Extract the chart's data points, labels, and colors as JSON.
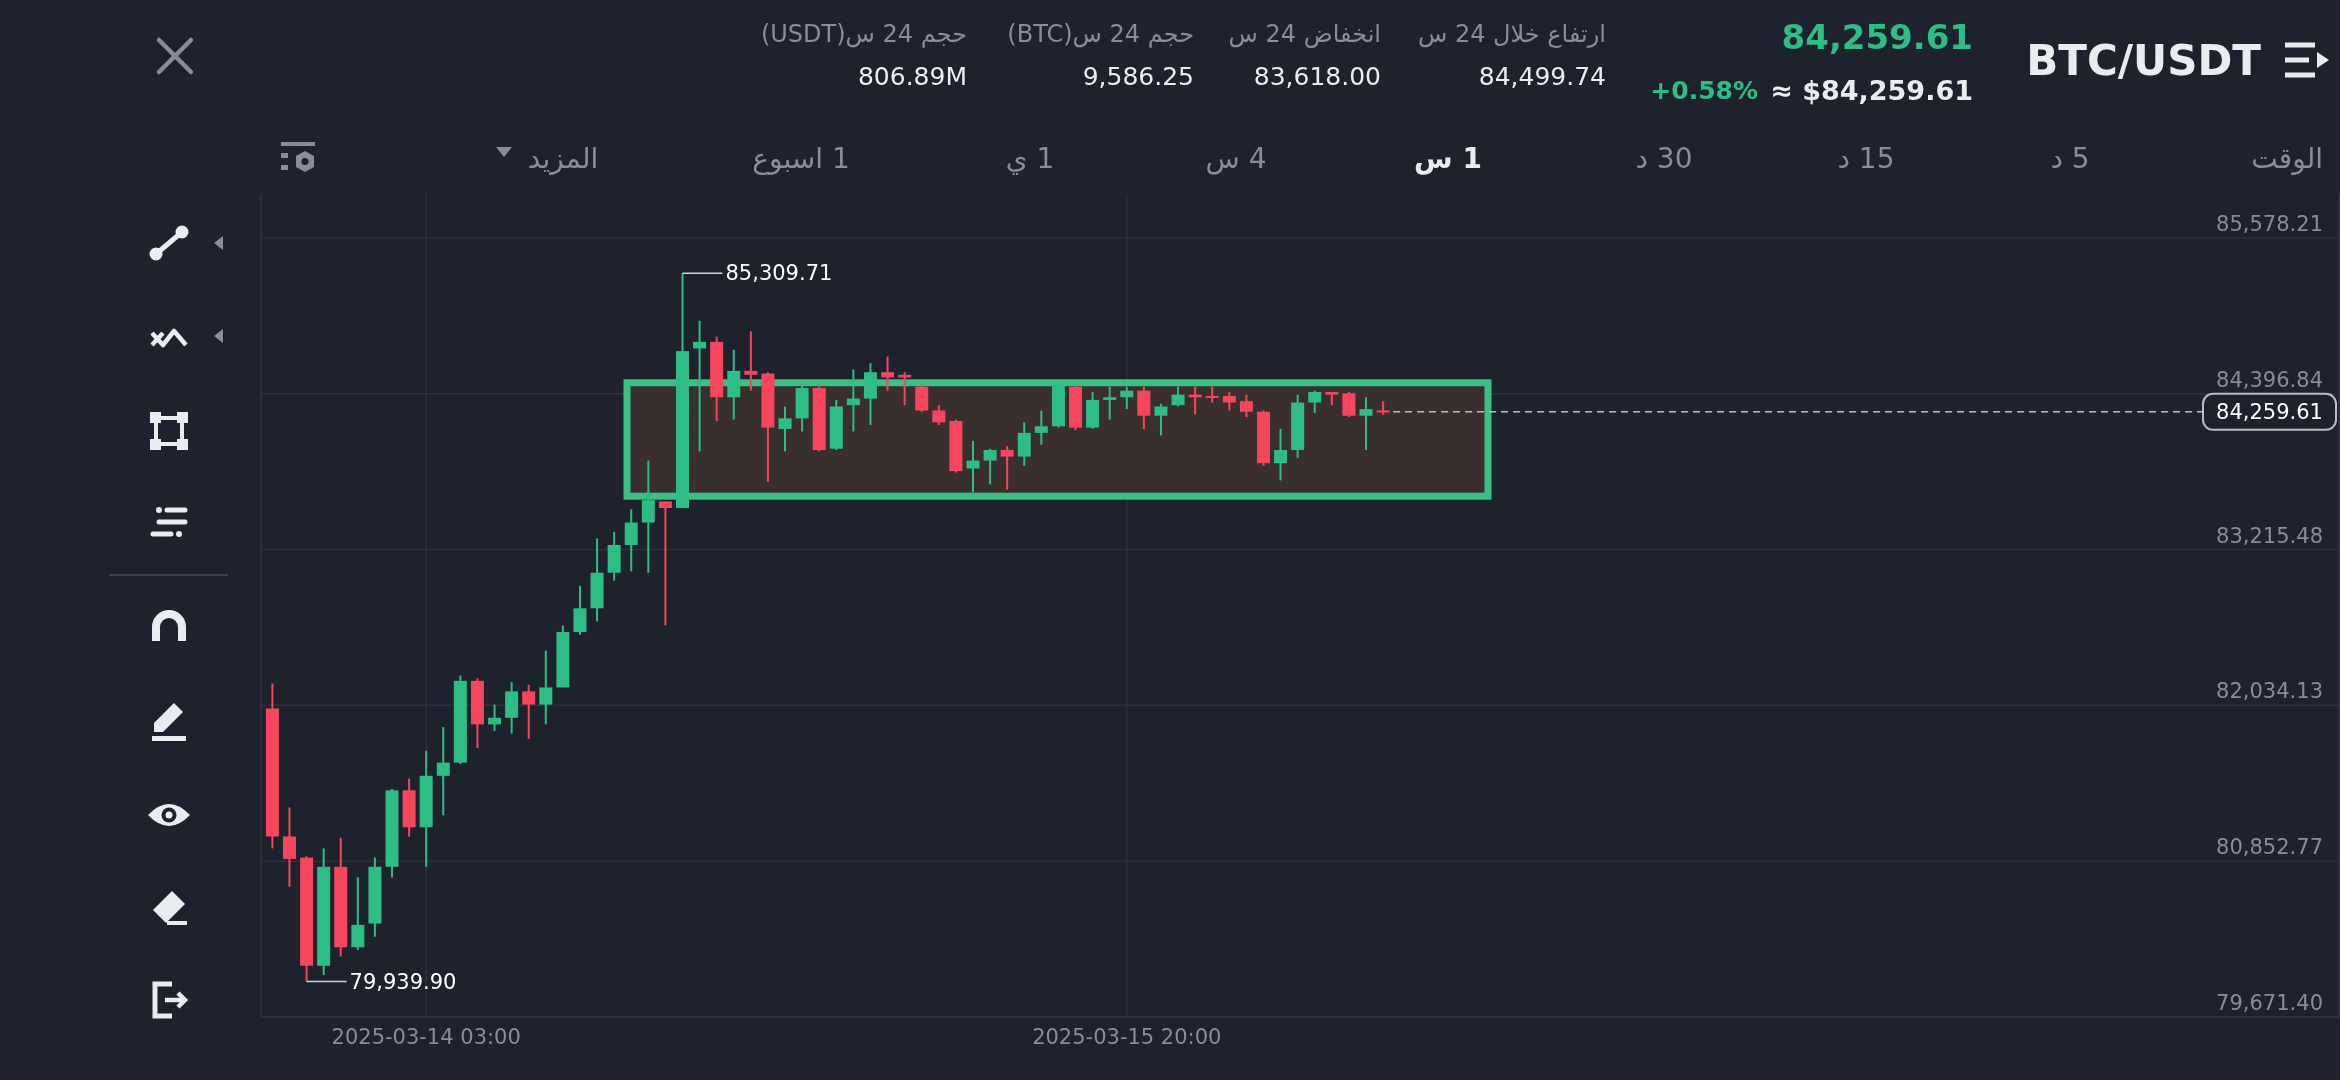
{
  "chart_data": {
    "type": "candlestick",
    "title": "BTC/USDT",
    "x": [
      "2025-03-13T18:00",
      "2025-03-13T19:00",
      "2025-03-13T20:00",
      "2025-03-13T21:00",
      "2025-03-13T22:00",
      "2025-03-13T23:00",
      "2025-03-14T00:00",
      "2025-03-14T01:00",
      "2025-03-14T02:00",
      "2025-03-14T03:00",
      "2025-03-14T04:00",
      "2025-03-14T05:00",
      "2025-03-14T06:00",
      "2025-03-14T07:00",
      "2025-03-14T08:00",
      "2025-03-14T09:00",
      "2025-03-14T10:00",
      "2025-03-14T11:00",
      "2025-03-14T12:00",
      "2025-03-14T13:00",
      "2025-03-14T14:00",
      "2025-03-14T15:00",
      "2025-03-14T16:00",
      "2025-03-14T17:00",
      "2025-03-14T18:00",
      "2025-03-14T19:00",
      "2025-03-14T20:00",
      "2025-03-14T21:00",
      "2025-03-14T22:00",
      "2025-03-14T23:00",
      "2025-03-15T00:00",
      "2025-03-15T01:00",
      "2025-03-15T02:00",
      "2025-03-15T03:00",
      "2025-03-15T04:00",
      "2025-03-15T05:00",
      "2025-03-15T06:00",
      "2025-03-15T07:00",
      "2025-03-15T08:00",
      "2025-03-15T09:00",
      "2025-03-15T10:00",
      "2025-03-15T11:00",
      "2025-03-15T12:00",
      "2025-03-15T13:00",
      "2025-03-15T14:00",
      "2025-03-15T15:00",
      "2025-03-15T16:00",
      "2025-03-15T17:00",
      "2025-03-15T18:00",
      "2025-03-15T19:00",
      "2025-03-15T20:00",
      "2025-03-15T21:00",
      "2025-03-15T22:00",
      "2025-03-15T23:00",
      "2025-03-16T00:00",
      "2025-03-16T01:00",
      "2025-03-16T02:00",
      "2025-03-16T03:00",
      "2025-03-16T04:00",
      "2025-03-16T05:00",
      "2025-03-16T06:00",
      "2025-03-16T07:00",
      "2025-03-16T08:00",
      "2025-03-16T09:00",
      "2025-03-16T10:00",
      "2025-03-16T11:00"
    ],
    "ohlc": [
      [
        82010,
        82200,
        80950,
        81040
      ],
      [
        81040,
        81260,
        80660,
        80870
      ],
      [
        80880,
        80890,
        79939.9,
        80060
      ],
      [
        80060,
        80950,
        79990,
        80810
      ],
      [
        80810,
        81030,
        80130,
        80200
      ],
      [
        80200,
        80730,
        80180,
        80370
      ],
      [
        80380,
        80880,
        80280,
        80810
      ],
      [
        80810,
        81400,
        80730,
        81390
      ],
      [
        81390,
        81480,
        81040,
        81110
      ],
      [
        81110,
        81690,
        80810,
        81500
      ],
      [
        81500,
        81870,
        81200,
        81600
      ],
      [
        81600,
        82260,
        81590,
        82220
      ],
      [
        82220,
        82240,
        81710,
        81890
      ],
      [
        81890,
        82040,
        81840,
        81940
      ],
      [
        81940,
        82210,
        81820,
        82140
      ],
      [
        82140,
        82190,
        81780,
        82040
      ],
      [
        82040,
        82450,
        81890,
        82170
      ],
      [
        82170,
        82640,
        82170,
        82590
      ],
      [
        82590,
        82940,
        82570,
        82770
      ],
      [
        82770,
        83300,
        82670,
        83040
      ],
      [
        83040,
        83350,
        82980,
        83250
      ],
      [
        83250,
        83520,
        83050,
        83420
      ],
      [
        83420,
        83890,
        83040,
        83590
      ],
      [
        83580,
        83580,
        82640,
        83530
      ],
      [
        83530,
        85309.71,
        83530,
        84720
      ],
      [
        84740,
        84950,
        83960,
        84790
      ],
      [
        84790,
        84830,
        84190,
        84370
      ],
      [
        84370,
        84730,
        84200,
        84570
      ],
      [
        84570,
        84870,
        84420,
        84540
      ],
      [
        84550,
        84560,
        83730,
        84140
      ],
      [
        84130,
        84300,
        83960,
        84210
      ],
      [
        84210,
        84460,
        84110,
        84440
      ],
      [
        84440,
        84450,
        83960,
        83970
      ],
      [
        83980,
        84350,
        83970,
        84300
      ],
      [
        84310,
        84580,
        84110,
        84360
      ],
      [
        84360,
        84630,
        84160,
        84560
      ],
      [
        84560,
        84680,
        84420,
        84520
      ],
      [
        84540,
        84560,
        84310,
        84520
      ],
      [
        84450,
        84460,
        84260,
        84270
      ],
      [
        84270,
        84310,
        84160,
        84180
      ],
      [
        84190,
        84200,
        83800,
        83810
      ],
      [
        83830,
        84040,
        83650,
        83890
      ],
      [
        83890,
        83980,
        83710,
        83970
      ],
      [
        83970,
        84000,
        83670,
        83920
      ],
      [
        83920,
        84180,
        83850,
        84100
      ],
      [
        84100,
        84270,
        84010,
        84150
      ],
      [
        84150,
        84470,
        84140,
        84460
      ],
      [
        84450,
        84460,
        84120,
        84140
      ],
      [
        84140,
        84410,
        84130,
        84350
      ],
      [
        84350,
        84450,
        84200,
        84370
      ],
      [
        84370,
        84450,
        84280,
        84420
      ],
      [
        84420,
        84450,
        84130,
        84230
      ],
      [
        84230,
        84320,
        84080,
        84300
      ],
      [
        84310,
        84450,
        84300,
        84390
      ],
      [
        84390,
        84450,
        84240,
        84370
      ],
      [
        84380,
        84450,
        84330,
        84370
      ],
      [
        84380,
        84410,
        84270,
        84330
      ],
      [
        84340,
        84390,
        84220,
        84260
      ],
      [
        84260,
        84270,
        83850,
        83870
      ],
      [
        83870,
        84130,
        83740,
        83970
      ],
      [
        83970,
        84390,
        83910,
        84330
      ],
      [
        84330,
        84420,
        84250,
        84410
      ],
      [
        84410,
        84410,
        84310,
        84390
      ],
      [
        84400,
        84410,
        84220,
        84230
      ],
      [
        84230,
        84370,
        83970,
        84280
      ],
      [
        84270,
        84340,
        84240,
        84259.61
      ]
    ],
    "colors": [
      "#f6465d",
      "#f6465d",
      "#f6465d",
      "#2ebd85",
      "#f6465d",
      "#2ebd85",
      "#2ebd85",
      "#2ebd85",
      "#f6465d",
      "#2ebd85",
      "#2ebd85",
      "#2ebd85",
      "#f6465d",
      "#2ebd85",
      "#2ebd85",
      "#f6465d",
      "#2ebd85",
      "#2ebd85",
      "#2ebd85",
      "#2ebd85",
      "#2ebd85",
      "#2ebd85",
      "#2ebd85",
      "#f6465d",
      "#2ebd85",
      "#2ebd85",
      "#f6465d",
      "#2ebd85",
      "#f6465d",
      "#f6465d",
      "#2ebd85",
      "#2ebd85",
      "#f6465d",
      "#2ebd85",
      "#2ebd85",
      "#2ebd85",
      "#f6465d",
      "#f6465d",
      "#f6465d",
      "#f6465d",
      "#f6465d",
      "#2ebd85",
      "#2ebd85",
      "#f6465d",
      "#2ebd85",
      "#2ebd85",
      "#2ebd85",
      "#f6465d",
      "#2ebd85",
      "#2ebd85",
      "#2ebd85",
      "#f6465d",
      "#2ebd85",
      "#2ebd85",
      "#f6465d",
      "#f6465d",
      "#f6465d",
      "#f6465d",
      "#f6465d",
      "#2ebd85",
      "#2ebd85",
      "#2ebd85",
      "#f6465d",
      "#f6465d",
      "#2ebd85",
      "#f6465d"
    ],
    "xlim": [
      "2025-03-13T17:20",
      "2025-03-18T19:00"
    ],
    "xticks": [
      {
        "value": "2025-03-14T03:00",
        "label": "2025-03-14 03:00"
      },
      {
        "value": "2025-03-15T20:00",
        "label": "2025-03-15 20:00"
      }
    ],
    "ylim": [
      79671.4,
      85911
    ],
    "yticks": [
      {
        "value": 79671.4,
        "label": "79,671.40"
      },
      {
        "value": 80852.77,
        "label": "80,852.77"
      },
      {
        "value": 82034.13,
        "label": "82,034.13"
      },
      {
        "value": 83215.48,
        "label": "83,215.48"
      },
      {
        "value": 84396.84,
        "label": "84,396.84"
      },
      {
        "value": 85578.21,
        "label": "85,578.21"
      }
    ],
    "grid": true,
    "ref_lines": [
      {
        "axis": "y",
        "value": 84259.61,
        "label": "84,259.61",
        "color": "#b7bdc6",
        "line_style": "dashed"
      }
    ],
    "bands": [
      {
        "axis": "y",
        "from": 83620,
        "to": 84480,
        "color": "#3a2f2f"
      }
    ],
    "annotations": [
      "84,259.61",
      "+0.58%",
      "≈ $84,259.61",
      "ارتفاع خلال 24 س",
      "84,499.74",
      "انخفاض 24 س",
      "83,618.00",
      "حجم 24 س(BTC)",
      "9,586.25",
      "حجم 24 س(USDT)",
      "806.89M",
      "الوقت",
      "5 د",
      "15 د",
      "30 د",
      "1 س",
      "4 س",
      "1 ي",
      "1 اسبوع",
      "المزيد",
      {
        "text": "85,309.71",
        "x": "2025-03-14T18:00",
        "y": 85309.71
      },
      {
        "text": "79,939.90",
        "x": "2025-03-13T20:00",
        "y": 79939.9
      }
    ]
  }
}
